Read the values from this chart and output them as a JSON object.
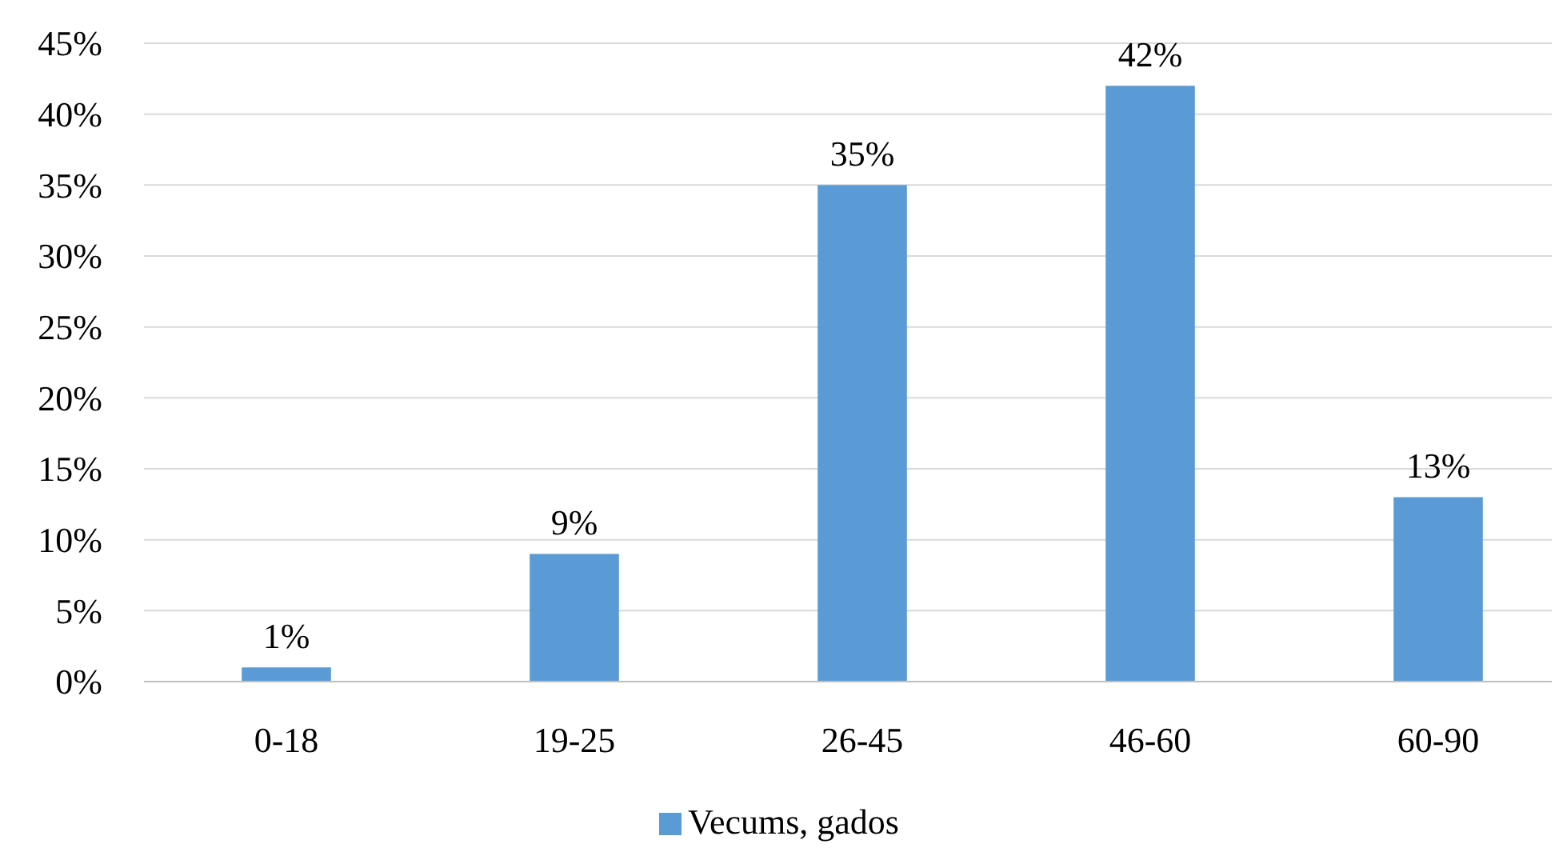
{
  "chart_data": {
    "type": "bar",
    "categories": [
      "0-18",
      "19-25",
      "26-45",
      "46-60",
      "60-90"
    ],
    "series": [
      {
        "name": "Vecums, gados",
        "color": "#5b9bd5",
        "values": [
          1,
          9,
          35,
          42,
          13
        ],
        "value_labels": [
          "1%",
          "9%",
          "35%",
          "42%",
          "13%"
        ]
      }
    ],
    "ylim": [
      0,
      45
    ],
    "yticks": [
      {
        "value": 0,
        "label": "0%"
      },
      {
        "value": 5,
        "label": "5%"
      },
      {
        "value": 10,
        "label": "10%"
      },
      {
        "value": 15,
        "label": "15%"
      },
      {
        "value": 20,
        "label": "20%"
      },
      {
        "value": 25,
        "label": "25%"
      },
      {
        "value": 30,
        "label": "30%"
      },
      {
        "value": 35,
        "label": "35%"
      },
      {
        "value": 40,
        "label": "40%"
      },
      {
        "value": 45,
        "label": "45%"
      }
    ],
    "grid": "y",
    "legend": "bottom"
  }
}
